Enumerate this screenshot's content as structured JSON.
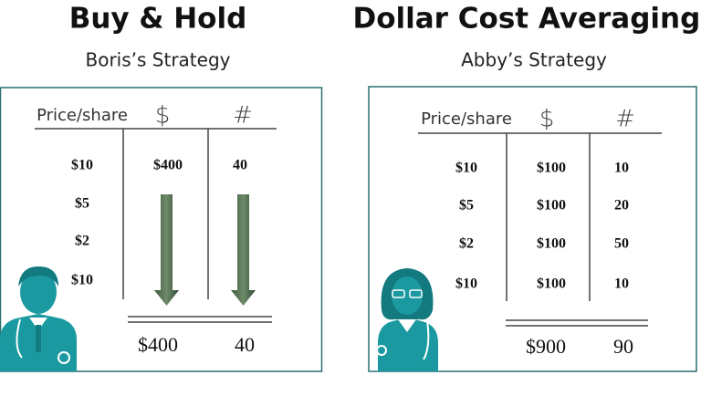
{
  "panels": [
    {
      "title": "Buy & Hold",
      "subtitle": "Boris’s Strategy",
      "headers": [
        "Price/share",
        "$",
        "#"
      ],
      "rows": [
        [
          "$10",
          "$400",
          "40"
        ],
        [
          "$5"
        ],
        [
          "$2"
        ],
        [
          "$10"
        ]
      ],
      "totals": [
        "$400",
        "40"
      ]
    },
    {
      "title": "Dollar Cost Averaging*",
      "subtitle": "Abby’s Strategy",
      "headers": [
        "Price/share",
        "$",
        "#"
      ],
      "rows": [
        [
          "$10",
          "$100",
          "10"
        ],
        [
          "$5",
          "$100",
          "20"
        ],
        [
          "$2",
          "$100",
          "50"
        ],
        [
          "$10",
          "$100",
          "10"
        ]
      ],
      "totals": [
        "$900",
        "90"
      ]
    }
  ]
}
